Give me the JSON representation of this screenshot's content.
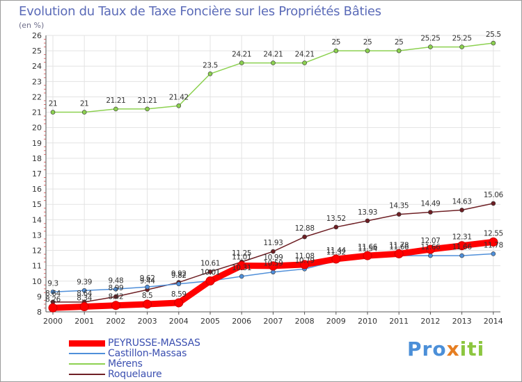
{
  "title": "Evolution du Taux de Taxe Foncière sur les Propriétés Bâties",
  "unit_label": "(en %)",
  "brand": {
    "part1": "Pro",
    "part2": "x",
    "part3": "iti"
  },
  "chart_data": {
    "type": "line",
    "title": "Evolution du Taux de Taxe Foncière sur les Propriétés Bâties",
    "ylabel": "(en %)",
    "xlabel": "",
    "ylim": [
      8,
      26
    ],
    "yticks": [
      8,
      9,
      10,
      11,
      12,
      13,
      14,
      15,
      16,
      17,
      18,
      19,
      20,
      21,
      22,
      23,
      24,
      25,
      26
    ],
    "grid": true,
    "legend_position": "bottom-left",
    "categories": [
      "2000",
      "2001",
      "2002",
      "2003",
      "2004",
      "2005",
      "2006",
      "2007",
      "2008",
      "2009",
      "2010",
      "2011",
      "2012",
      "2013",
      "2014"
    ],
    "series": [
      {
        "name": "PEYRUSSE-MASSAS",
        "color": "#ff0000",
        "highlight": true,
        "values": [
          8.26,
          8.34,
          8.42,
          8.5,
          8.59,
          10.01,
          11.01,
          10.99,
          11.08,
          11.44,
          11.66,
          11.78,
          12.07,
          12.31,
          12.55
        ],
        "labels": [
          "8.26",
          "8.34",
          "8.42",
          "8.5",
          "8.59",
          "10.01",
          "11.01",
          "10.99",
          "11.08",
          "11.44",
          "11.66",
          "11.78",
          "12.07",
          "12.31",
          "12.55"
        ]
      },
      {
        "name": "Castillon-Massas",
        "color": "#4f8fd9",
        "highlight": false,
        "values": [
          9.3,
          9.39,
          9.48,
          9.62,
          9.82,
          10.01,
          10.31,
          10.59,
          10.79,
          11.32,
          11.54,
          11.66,
          11.66,
          11.66,
          11.78
        ],
        "labels": [
          "9.3",
          "9.39",
          "9.48",
          "9.62",
          "9.82",
          "10.01",
          "10.31",
          "10.59",
          "10.79",
          "11.32",
          "11.54",
          "11.66",
          "11.66",
          "11.66",
          "11.78"
        ]
      },
      {
        "name": "Mérens",
        "color": "#8cd150",
        "highlight": false,
        "values": [
          21,
          21,
          21.21,
          21.21,
          21.42,
          23.5,
          24.21,
          24.21,
          24.21,
          25,
          25,
          25,
          25.25,
          25.25,
          25.5
        ],
        "labels": [
          "21",
          "21",
          "21.21",
          "21.21",
          "21.42",
          "23.5",
          "24.21",
          "24.21",
          "24.21",
          "25",
          "25",
          "25",
          "25.25",
          "25.25",
          "25.5"
        ]
      },
      {
        "name": "Roquelaure",
        "color": "#6e1f24",
        "highlight": false,
        "values": [
          8.64,
          8.64,
          8.99,
          9.44,
          9.92,
          10.61,
          11.25,
          11.93,
          12.88,
          13.52,
          13.93,
          14.35,
          14.49,
          14.63,
          15.06
        ],
        "labels": [
          "8.64",
          "8.64",
          "8.99",
          "9.44",
          "9.92",
          "10.61",
          "11.25",
          "11.93",
          "12.88",
          "13.52",
          "13.93",
          "14.35",
          "14.49",
          "14.63",
          "15.06"
        ]
      }
    ]
  }
}
